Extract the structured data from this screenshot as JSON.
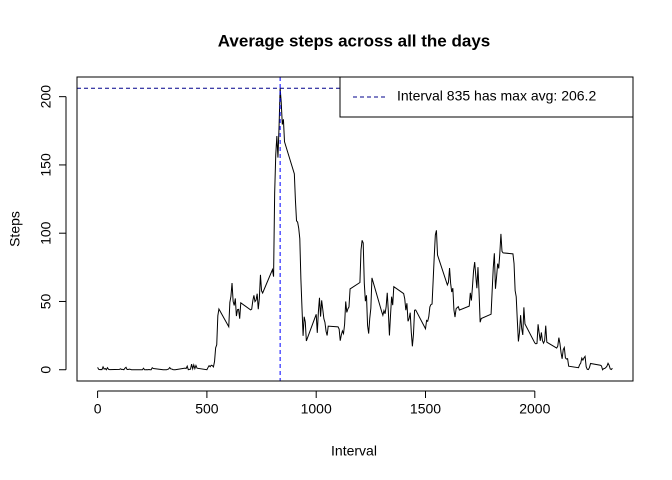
{
  "chart_data": {
    "type": "line",
    "title": "Average steps across all the days",
    "x_label": "Interval",
    "y_label": "Steps",
    "x": [
      0,
      5,
      10,
      15,
      20,
      25,
      30,
      35,
      40,
      45,
      50,
      55,
      100,
      105,
      110,
      115,
      120,
      125,
      130,
      135,
      140,
      145,
      150,
      155,
      200,
      205,
      210,
      215,
      220,
      225,
      230,
      235,
      240,
      245,
      250,
      255,
      300,
      305,
      310,
      315,
      320,
      325,
      330,
      335,
      340,
      345,
      350,
      355,
      400,
      405,
      410,
      415,
      420,
      425,
      430,
      435,
      440,
      445,
      450,
      455,
      500,
      505,
      510,
      515,
      520,
      525,
      530,
      535,
      540,
      545,
      550,
      555,
      600,
      605,
      610,
      615,
      620,
      625,
      630,
      635,
      640,
      645,
      650,
      655,
      700,
      705,
      710,
      715,
      720,
      725,
      730,
      735,
      740,
      745,
      750,
      755,
      800,
      805,
      810,
      815,
      820,
      825,
      830,
      835,
      840,
      845,
      850,
      855,
      900,
      905,
      910,
      915,
      920,
      925,
      930,
      935,
      940,
      945,
      950,
      955,
      1000,
      1005,
      1010,
      1015,
      1020,
      1025,
      1030,
      1035,
      1040,
      1045,
      1050,
      1055,
      1100,
      1105,
      1110,
      1115,
      1120,
      1125,
      1130,
      1135,
      1140,
      1145,
      1150,
      1155,
      1200,
      1205,
      1210,
      1215,
      1220,
      1225,
      1230,
      1235,
      1240,
      1245,
      1250,
      1255,
      1300,
      1305,
      1310,
      1315,
      1320,
      1325,
      1330,
      1335,
      1340,
      1345,
      1350,
      1355,
      1400,
      1405,
      1410,
      1415,
      1420,
      1425,
      1430,
      1435,
      1440,
      1445,
      1450,
      1455,
      1500,
      1505,
      1510,
      1515,
      1520,
      1525,
      1530,
      1535,
      1540,
      1545,
      1550,
      1555,
      1600,
      1605,
      1610,
      1615,
      1620,
      1625,
      1630,
      1635,
      1640,
      1645,
      1650,
      1655,
      1700,
      1705,
      1710,
      1715,
      1720,
      1725,
      1730,
      1735,
      1740,
      1745,
      1750,
      1755,
      1800,
      1805,
      1810,
      1815,
      1820,
      1825,
      1830,
      1835,
      1840,
      1845,
      1850,
      1855,
      1900,
      1905,
      1910,
      1915,
      1920,
      1925,
      1930,
      1935,
      1940,
      1945,
      1950,
      1955,
      2000,
      2005,
      2010,
      2015,
      2020,
      2025,
      2030,
      2035,
      2040,
      2045,
      2050,
      2055,
      2100,
      2105,
      2110,
      2115,
      2120,
      2125,
      2130,
      2135,
      2140,
      2145,
      2150,
      2155,
      2200,
      2205,
      2210,
      2215,
      2220,
      2225,
      2230,
      2235,
      2240,
      2245,
      2250,
      2255,
      2300,
      2305,
      2310,
      2315,
      2320,
      2325,
      2330,
      2335,
      2340,
      2345,
      2350,
      2355
    ],
    "values": [
      1.7,
      0.3,
      0.1,
      0.2,
      0.1,
      2.1,
      0.5,
      0.9,
      0,
      1.5,
      0.3,
      0.1,
      0.3,
      0.7,
      0.2,
      0.3,
      0,
      1.1,
      1.8,
      0.2,
      0.2,
      0.4,
      0.3,
      0,
      0,
      0,
      1.1,
      0,
      0,
      0.1,
      0,
      0.2,
      0,
      0,
      1.5,
      0.9,
      0,
      0,
      0,
      0,
      0.2,
      0.6,
      1.6,
      0.6,
      0.5,
      0.1,
      0,
      0,
      1.2,
      0.9,
      2.6,
      0,
      0.3,
      0.4,
      4.1,
      0.7,
      3.5,
      0.8,
      3.1,
      1.1,
      0,
      1.6,
      3.0,
      2.2,
      3.3,
      3.0,
      2.1,
      6.1,
      16.0,
      18.3,
      39.5,
      44.5,
      31.5,
      49.3,
      53.8,
      63.5,
      50.0,
      47.1,
      52.2,
      39.3,
      44.0,
      44.2,
      37.4,
      49.0,
      43.8,
      44.4,
      50.5,
      54.5,
      49.9,
      51.0,
      55.7,
      44.3,
      52.3,
      69.5,
      57.8,
      56.2,
      73.4,
      68.2,
      129.4,
      157.5,
      171.2,
      155.4,
      177.3,
      206.2,
      195.9,
      179.6,
      183.4,
      167.0,
      143.5,
      124.0,
      109.1,
      108.1,
      103.7,
      96.0,
      66.2,
      45.2,
      24.8,
      38.8,
      35.0,
      21.1,
      40.6,
      27.0,
      42.4,
      52.7,
      38.9,
      50.8,
      44.3,
      37.4,
      34.7,
      28.3,
      25.1,
      31.9,
      31.4,
      29.7,
      21.3,
      25.5,
      28.4,
      26.5,
      33.4,
      50.0,
      42.0,
      44.6,
      46.0,
      59.2,
      63.9,
      87.7,
      94.8,
      92.8,
      63.4,
      50.2,
      54.5,
      32.4,
      26.5,
      37.7,
      45.1,
      67.3,
      42.3,
      39.9,
      43.3,
      41.0,
      46.2,
      56.4,
      42.8,
      25.1,
      40.0,
      53.5,
      47.3,
      60.8,
      55.8,
      52.0,
      43.6,
      48.7,
      35.5,
      37.5,
      41.8,
      27.5,
      17.1,
      26.1,
      43.6,
      43.8,
      30.0,
      36.1,
      35.5,
      38.8,
      46.0,
      47.8,
      48.1,
      65.3,
      82.9,
      98.7,
      102.1,
      84.0,
      62.1,
      64.1,
      74.5,
      63.2,
      56.9,
      59.8,
      43.9,
      38.6,
      44.7,
      45.5,
      46.2,
      43.7,
      46.6,
      56.3,
      50.7,
      61.2,
      72.7,
      78.9,
      68.9,
      59.7,
      75.1,
      56.5,
      34.8,
      37.5,
      40.7,
      58.0,
      74.7,
      85.3,
      59.3,
      67.8,
      77.7,
      74.2,
      85.3,
      99.5,
      86.6,
      85.6,
      84.9,
      77.8,
      58.0,
      53.4,
      36.3,
      20.7,
      27.4,
      40.0,
      30.2,
      25.5,
      45.7,
      33.5,
      19.6,
      19.0,
      19.3,
      33.3,
      26.8,
      21.2,
      27.3,
      21.3,
      19.5,
      21.3,
      32.3,
      20.2,
      15.9,
      17.2,
      23.5,
      19.2,
      12.5,
      8.0,
      14.7,
      16.3,
      8.7,
      7.8,
      8.1,
      2.6,
      1.5,
      3.7,
      4.8,
      8.5,
      7.1,
      8.7,
      9.8,
      2.2,
      0.3,
      0.1,
      1.6,
      4.6,
      3.3,
      2.8,
      0,
      0.8,
      1.0,
      1.6,
      2.6,
      4.7,
      3.3,
      0.6,
      0.2,
      1.1
    ],
    "color": "#000000",
    "xlim": [
      -94.2,
      2449.2
    ],
    "ylim": [
      -8.25,
      214.4
    ],
    "xticks": [
      0,
      500,
      1000,
      1500,
      2000
    ],
    "yticks": [
      0,
      50,
      100,
      150,
      200
    ],
    "max_line": {
      "x": 835,
      "y": 206.2,
      "vline_color": "#0000ff",
      "hline_color": "#00008b"
    },
    "legend": {
      "label": "Interval 835 has max avg: 206.2",
      "position": "topright",
      "color": "#00008b"
    }
  }
}
